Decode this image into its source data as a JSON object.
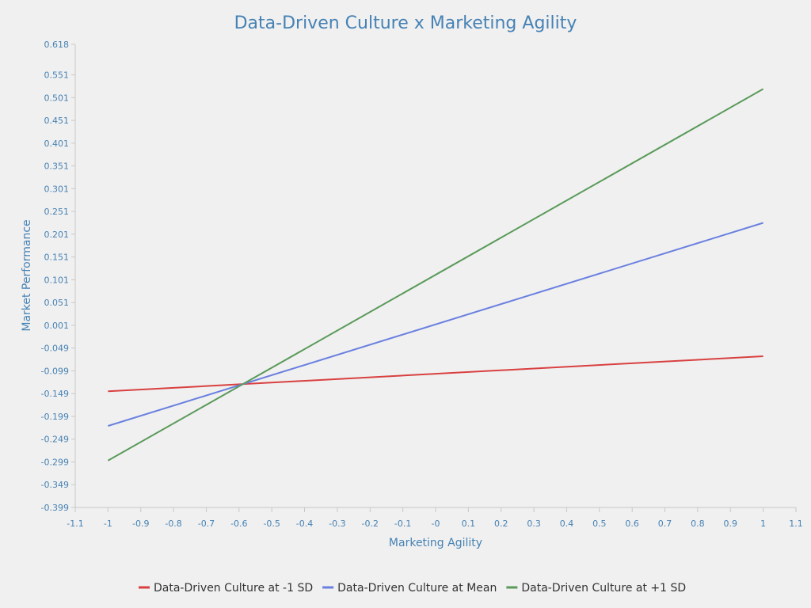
{
  "chart_data": {
    "type": "line",
    "title": "Data-Driven Culture x Marketing Agility",
    "xlabel": "Marketing Agility",
    "ylabel": "Market Performance",
    "xlim": [
      -1.1,
      1.1
    ],
    "ylim": [
      -0.399,
      0.618
    ],
    "xticks": [
      "-1.1",
      "-1",
      "-0.9",
      "-0.8",
      "-0.7",
      "-0.6",
      "-0.5",
      "-0.4",
      "-0.3",
      "-0.2",
      "-0.1",
      "-0",
      "0.1",
      "0.2",
      "0.3",
      "0.4",
      "0.5",
      "0.6",
      "0.7",
      "0.8",
      "0.9",
      "1",
      "1.1"
    ],
    "yticks": [
      "-0.399",
      "-0.349",
      "-0.299",
      "-0.249",
      "-0.199",
      "-0.149",
      "-0.099",
      "-0.049",
      "0.001",
      "0.051",
      "0.101",
      "0.151",
      "0.201",
      "0.251",
      "0.301",
      "0.351",
      "0.401",
      "0.451",
      "0.501",
      "0.551",
      "0.618"
    ],
    "grid": false,
    "legend_position": "bottom",
    "series": [
      {
        "name": "Data-Driven Culture at -1 SD",
        "color": "#d94040",
        "x": [
          -1,
          1
        ],
        "y": [
          -0.144,
          -0.067
        ]
      },
      {
        "name": "Data-Driven Culture at Mean",
        "color": "#6a80e0",
        "x": [
          -1,
          1
        ],
        "y": [
          -0.22,
          0.226
        ]
      },
      {
        "name": "Data-Driven Culture at +1 SD",
        "color": "#5a9a5a",
        "x": [
          -1,
          1
        ],
        "y": [
          -0.296,
          0.52
        ]
      }
    ]
  }
}
